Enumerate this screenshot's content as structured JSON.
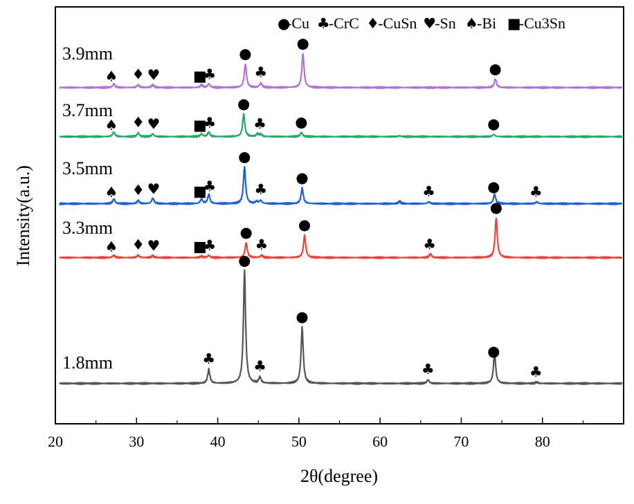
{
  "chart_data": {
    "type": "line",
    "title": "",
    "xlabel": "2θ(degree)",
    "ylabel": "Intensity(a.u.)",
    "xlim": [
      20,
      90
    ],
    "xticks": [
      20,
      30,
      40,
      50,
      60,
      70,
      80
    ],
    "grid": false,
    "legend_position": "top-right",
    "legend": [
      {
        "symbol": "circle",
        "label": "-Cu"
      },
      {
        "symbol": "club",
        "label": "-CrC"
      },
      {
        "symbol": "diamond",
        "label": "-CuSn"
      },
      {
        "symbol": "heart",
        "label": "-Sn"
      },
      {
        "symbol": "spade",
        "label": "-Bi"
      },
      {
        "symbol": "square",
        "label": "-Cu3Sn"
      }
    ],
    "series": [
      {
        "name": "1.8mm",
        "color": "#555555",
        "baseline": 0.02,
        "peaks": [
          [
            38.9,
            0.3
          ],
          [
            43.3,
            2.4
          ],
          [
            45.2,
            0.13
          ],
          [
            50.4,
            1.2
          ],
          [
            65.9,
            0.08
          ],
          [
            74.1,
            0.65
          ],
          [
            79.3,
            0.03
          ]
        ],
        "markers": [
          {
            "x": 38.9,
            "symbol": "club"
          },
          {
            "x": 43.3,
            "symbol": "circle"
          },
          {
            "x": 45.2,
            "symbol": "club"
          },
          {
            "x": 50.4,
            "symbol": "circle"
          },
          {
            "x": 65.9,
            "symbol": "club"
          },
          {
            "x": 74.0,
            "symbol": "circle"
          },
          {
            "x": 79.2,
            "symbol": "club"
          }
        ]
      },
      {
        "name": "3.3mm",
        "color": "#e8453c",
        "baseline": 0.02,
        "peaks": [
          [
            27.2,
            0.05
          ],
          [
            30.2,
            0.05
          ],
          [
            32.0,
            0.04
          ],
          [
            38.0,
            0.03
          ],
          [
            38.9,
            0.05
          ],
          [
            43.5,
            0.32
          ],
          [
            45.4,
            0.05
          ],
          [
            50.7,
            0.48
          ],
          [
            66.2,
            0.08
          ],
          [
            74.3,
            0.85
          ]
        ],
        "markers": [
          {
            "x": 26.9,
            "symbol": "spade"
          },
          {
            "x": 30.2,
            "symbol": "diamond"
          },
          {
            "x": 32.1,
            "symbol": "heart"
          },
          {
            "x": 37.8,
            "symbol": "square"
          },
          {
            "x": 39.0,
            "symbol": "club"
          },
          {
            "x": 43.5,
            "symbol": "circle"
          },
          {
            "x": 45.4,
            "symbol": "club"
          },
          {
            "x": 50.7,
            "symbol": "circle"
          },
          {
            "x": 66.1,
            "symbol": "club"
          },
          {
            "x": 74.3,
            "symbol": "circle"
          }
        ]
      },
      {
        "name": "3.5mm",
        "color": "#1f5fd6",
        "baseline": 0.02,
        "peaks": [
          [
            27.2,
            0.1
          ],
          [
            30.2,
            0.07
          ],
          [
            32.0,
            0.12
          ],
          [
            38.0,
            0.1
          ],
          [
            38.9,
            0.2
          ],
          [
            43.3,
            0.78
          ],
          [
            44.8,
            0.05
          ],
          [
            45.3,
            0.07
          ],
          [
            50.4,
            0.33
          ],
          [
            62.4,
            0.05
          ],
          [
            66.0,
            0.04
          ],
          [
            74.1,
            0.2
          ],
          [
            79.3,
            0.04
          ]
        ],
        "markers": [
          {
            "x": 26.9,
            "symbol": "spade"
          },
          {
            "x": 30.2,
            "symbol": "diamond"
          },
          {
            "x": 32.1,
            "symbol": "heart"
          },
          {
            "x": 37.8,
            "symbol": "square"
          },
          {
            "x": 39.0,
            "symbol": "club"
          },
          {
            "x": 43.3,
            "symbol": "circle"
          },
          {
            "x": 45.3,
            "symbol": "club"
          },
          {
            "x": 50.4,
            "symbol": "circle"
          },
          {
            "x": 66.0,
            "symbol": "club"
          },
          {
            "x": 74.0,
            "symbol": "circle"
          },
          {
            "x": 79.2,
            "symbol": "club"
          }
        ]
      },
      {
        "name": "3.7mm",
        "color": "#2aa86a",
        "baseline": 0.02,
        "peaks": [
          [
            27.2,
            0.1
          ],
          [
            30.2,
            0.08
          ],
          [
            32.0,
            0.06
          ],
          [
            38.0,
            0.06
          ],
          [
            38.9,
            0.1
          ],
          [
            43.2,
            0.48
          ],
          [
            44.9,
            0.06
          ],
          [
            45.3,
            0.05
          ],
          [
            50.3,
            0.09
          ],
          [
            62.4,
            0.02
          ],
          [
            74.0,
            0.05
          ]
        ],
        "markers": [
          {
            "x": 26.9,
            "symbol": "spade"
          },
          {
            "x": 30.2,
            "symbol": "diamond"
          },
          {
            "x": 32.1,
            "symbol": "heart"
          },
          {
            "x": 37.8,
            "symbol": "square"
          },
          {
            "x": 39.0,
            "symbol": "club"
          },
          {
            "x": 43.2,
            "symbol": "circle"
          },
          {
            "x": 45.2,
            "symbol": "club"
          },
          {
            "x": 50.3,
            "symbol": "circle"
          },
          {
            "x": 74.0,
            "symbol": "circle"
          }
        ]
      },
      {
        "name": "3.9mm",
        "color": "#b46fd8",
        "baseline": 0.02,
        "peaks": [
          [
            27.2,
            0.08
          ],
          [
            30.2,
            0.06
          ],
          [
            32.0,
            0.06
          ],
          [
            38.0,
            0.06
          ],
          [
            38.9,
            0.08
          ],
          [
            43.4,
            0.5
          ],
          [
            45.3,
            0.1
          ],
          [
            50.5,
            0.72
          ],
          [
            74.2,
            0.18
          ]
        ],
        "markers": [
          {
            "x": 26.9,
            "symbol": "spade"
          },
          {
            "x": 30.2,
            "symbol": "diamond"
          },
          {
            "x": 32.1,
            "symbol": "heart"
          },
          {
            "x": 37.8,
            "symbol": "square"
          },
          {
            "x": 39.0,
            "symbol": "club"
          },
          {
            "x": 43.4,
            "symbol": "circle"
          },
          {
            "x": 45.3,
            "symbol": "club"
          },
          {
            "x": 50.5,
            "symbol": "circle"
          },
          {
            "x": 74.2,
            "symbol": "circle"
          }
        ]
      }
    ],
    "symbol_glyphs": {
      "circle": "●",
      "club": "♣",
      "diamond": "♦",
      "heart": "♥",
      "spade": "♠",
      "square": "■"
    }
  }
}
